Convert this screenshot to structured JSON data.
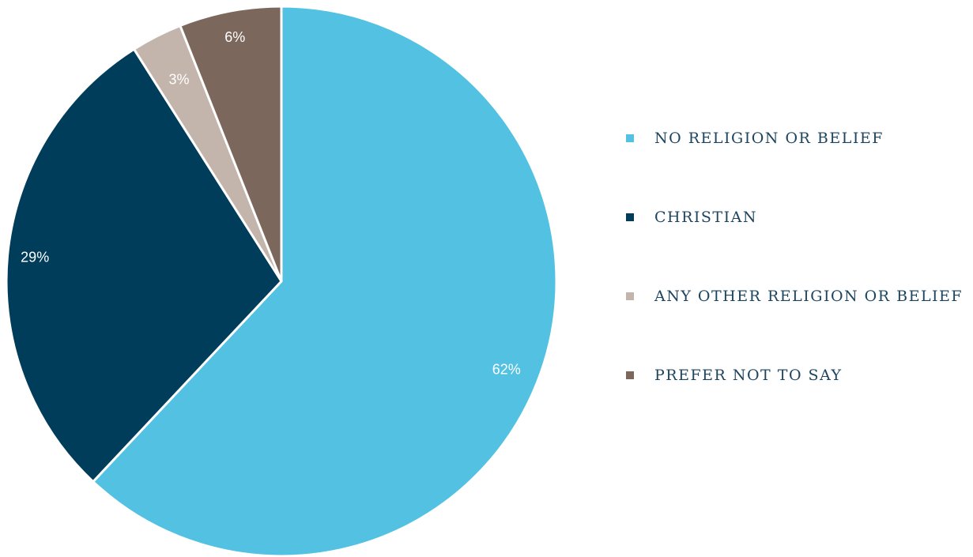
{
  "chart_data": {
    "type": "pie",
    "title": "",
    "categories": [
      "NO RELIGION OR BELIEF",
      "CHRISTIAN",
      "ANY OTHER RELIGION OR BELIEF",
      "PREFER NOT TO SAY"
    ],
    "values": [
      62,
      29,
      3,
      6
    ],
    "data_labels": [
      "62%",
      "29%",
      "3%",
      "6%"
    ],
    "colors": [
      "#52c1e2",
      "#003d5b",
      "#c3b4ac",
      "#7b675c"
    ],
    "start_angle": "12 o'clock",
    "direction": "clockwise",
    "legend": "right"
  }
}
